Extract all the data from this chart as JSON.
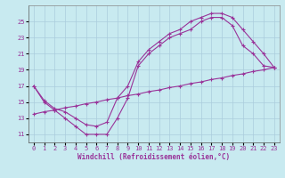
{
  "xlabel": "Windchill (Refroidissement éolien,°C)",
  "bg_color": "#c8eaf0",
  "line_color": "#993399",
  "grid_color": "#aaccdd",
  "xlim": [
    -0.5,
    23.5
  ],
  "ylim": [
    10.0,
    27.0
  ],
  "yticks": [
    11,
    13,
    15,
    17,
    19,
    21,
    23,
    25
  ],
  "xticks": [
    0,
    1,
    2,
    3,
    4,
    5,
    6,
    7,
    8,
    9,
    10,
    11,
    12,
    13,
    14,
    15,
    16,
    17,
    18,
    19,
    20,
    21,
    22,
    23
  ],
  "line1_x": [
    0,
    1,
    2,
    3,
    4,
    5,
    6,
    7,
    8,
    9,
    10,
    11,
    12,
    13,
    14,
    15,
    16,
    17,
    18,
    19,
    20,
    21,
    22,
    23
  ],
  "line1_y": [
    17.0,
    15.0,
    14.0,
    13.0,
    12.0,
    11.0,
    11.0,
    11.0,
    13.0,
    15.5,
    19.5,
    21.0,
    22.0,
    23.0,
    23.5,
    24.0,
    25.0,
    25.5,
    25.5,
    24.5,
    22.0,
    21.0,
    19.5,
    19.3
  ],
  "line2_x": [
    0,
    1,
    2,
    3,
    4,
    5,
    6,
    7,
    8,
    9,
    10,
    11,
    12,
    13,
    14,
    15,
    16,
    17,
    18,
    19,
    20,
    21,
    22,
    23
  ],
  "line2_y": [
    17.0,
    15.2,
    14.2,
    13.8,
    13.0,
    12.2,
    12.0,
    12.5,
    15.5,
    17.0,
    20.0,
    21.5,
    22.5,
    23.5,
    24.0,
    25.0,
    25.5,
    26.0,
    26.0,
    25.5,
    24.0,
    22.5,
    21.0,
    19.3
  ],
  "line3_x": [
    0,
    1,
    2,
    3,
    4,
    5,
    6,
    7,
    8,
    9,
    10,
    11,
    12,
    13,
    14,
    15,
    16,
    17,
    18,
    19,
    20,
    21,
    22,
    23
  ],
  "line3_y": [
    13.5,
    13.8,
    14.0,
    14.3,
    14.5,
    14.8,
    15.0,
    15.3,
    15.5,
    15.8,
    16.0,
    16.3,
    16.5,
    16.8,
    17.0,
    17.3,
    17.5,
    17.8,
    18.0,
    18.3,
    18.5,
    18.8,
    19.0,
    19.3
  ]
}
